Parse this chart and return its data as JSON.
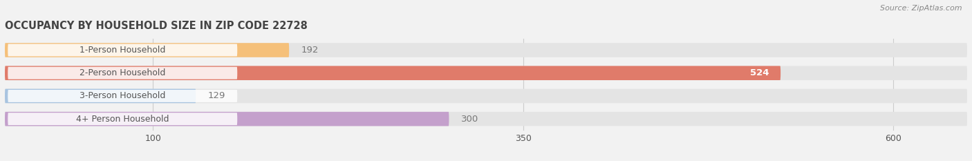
{
  "title": "OCCUPANCY BY HOUSEHOLD SIZE IN ZIP CODE 22728",
  "source": "Source: ZipAtlas.com",
  "categories": [
    "1-Person Household",
    "2-Person Household",
    "3-Person Household",
    "4+ Person Household"
  ],
  "values": [
    192,
    524,
    129,
    300
  ],
  "colors": [
    "#f5c07a",
    "#e07b6a",
    "#a8c4e0",
    "#c4a0cc"
  ],
  "bar_label_colors": [
    "#777777",
    "#ffffff",
    "#777777",
    "#777777"
  ],
  "xlim": [
    0,
    650
  ],
  "xticks": [
    100,
    350,
    600
  ],
  "background_color": "#f2f2f2",
  "bar_bg_color": "#e4e4e4",
  "bar_height": 0.62,
  "label_fontsize": 9,
  "title_fontsize": 10.5,
  "source_fontsize": 8
}
